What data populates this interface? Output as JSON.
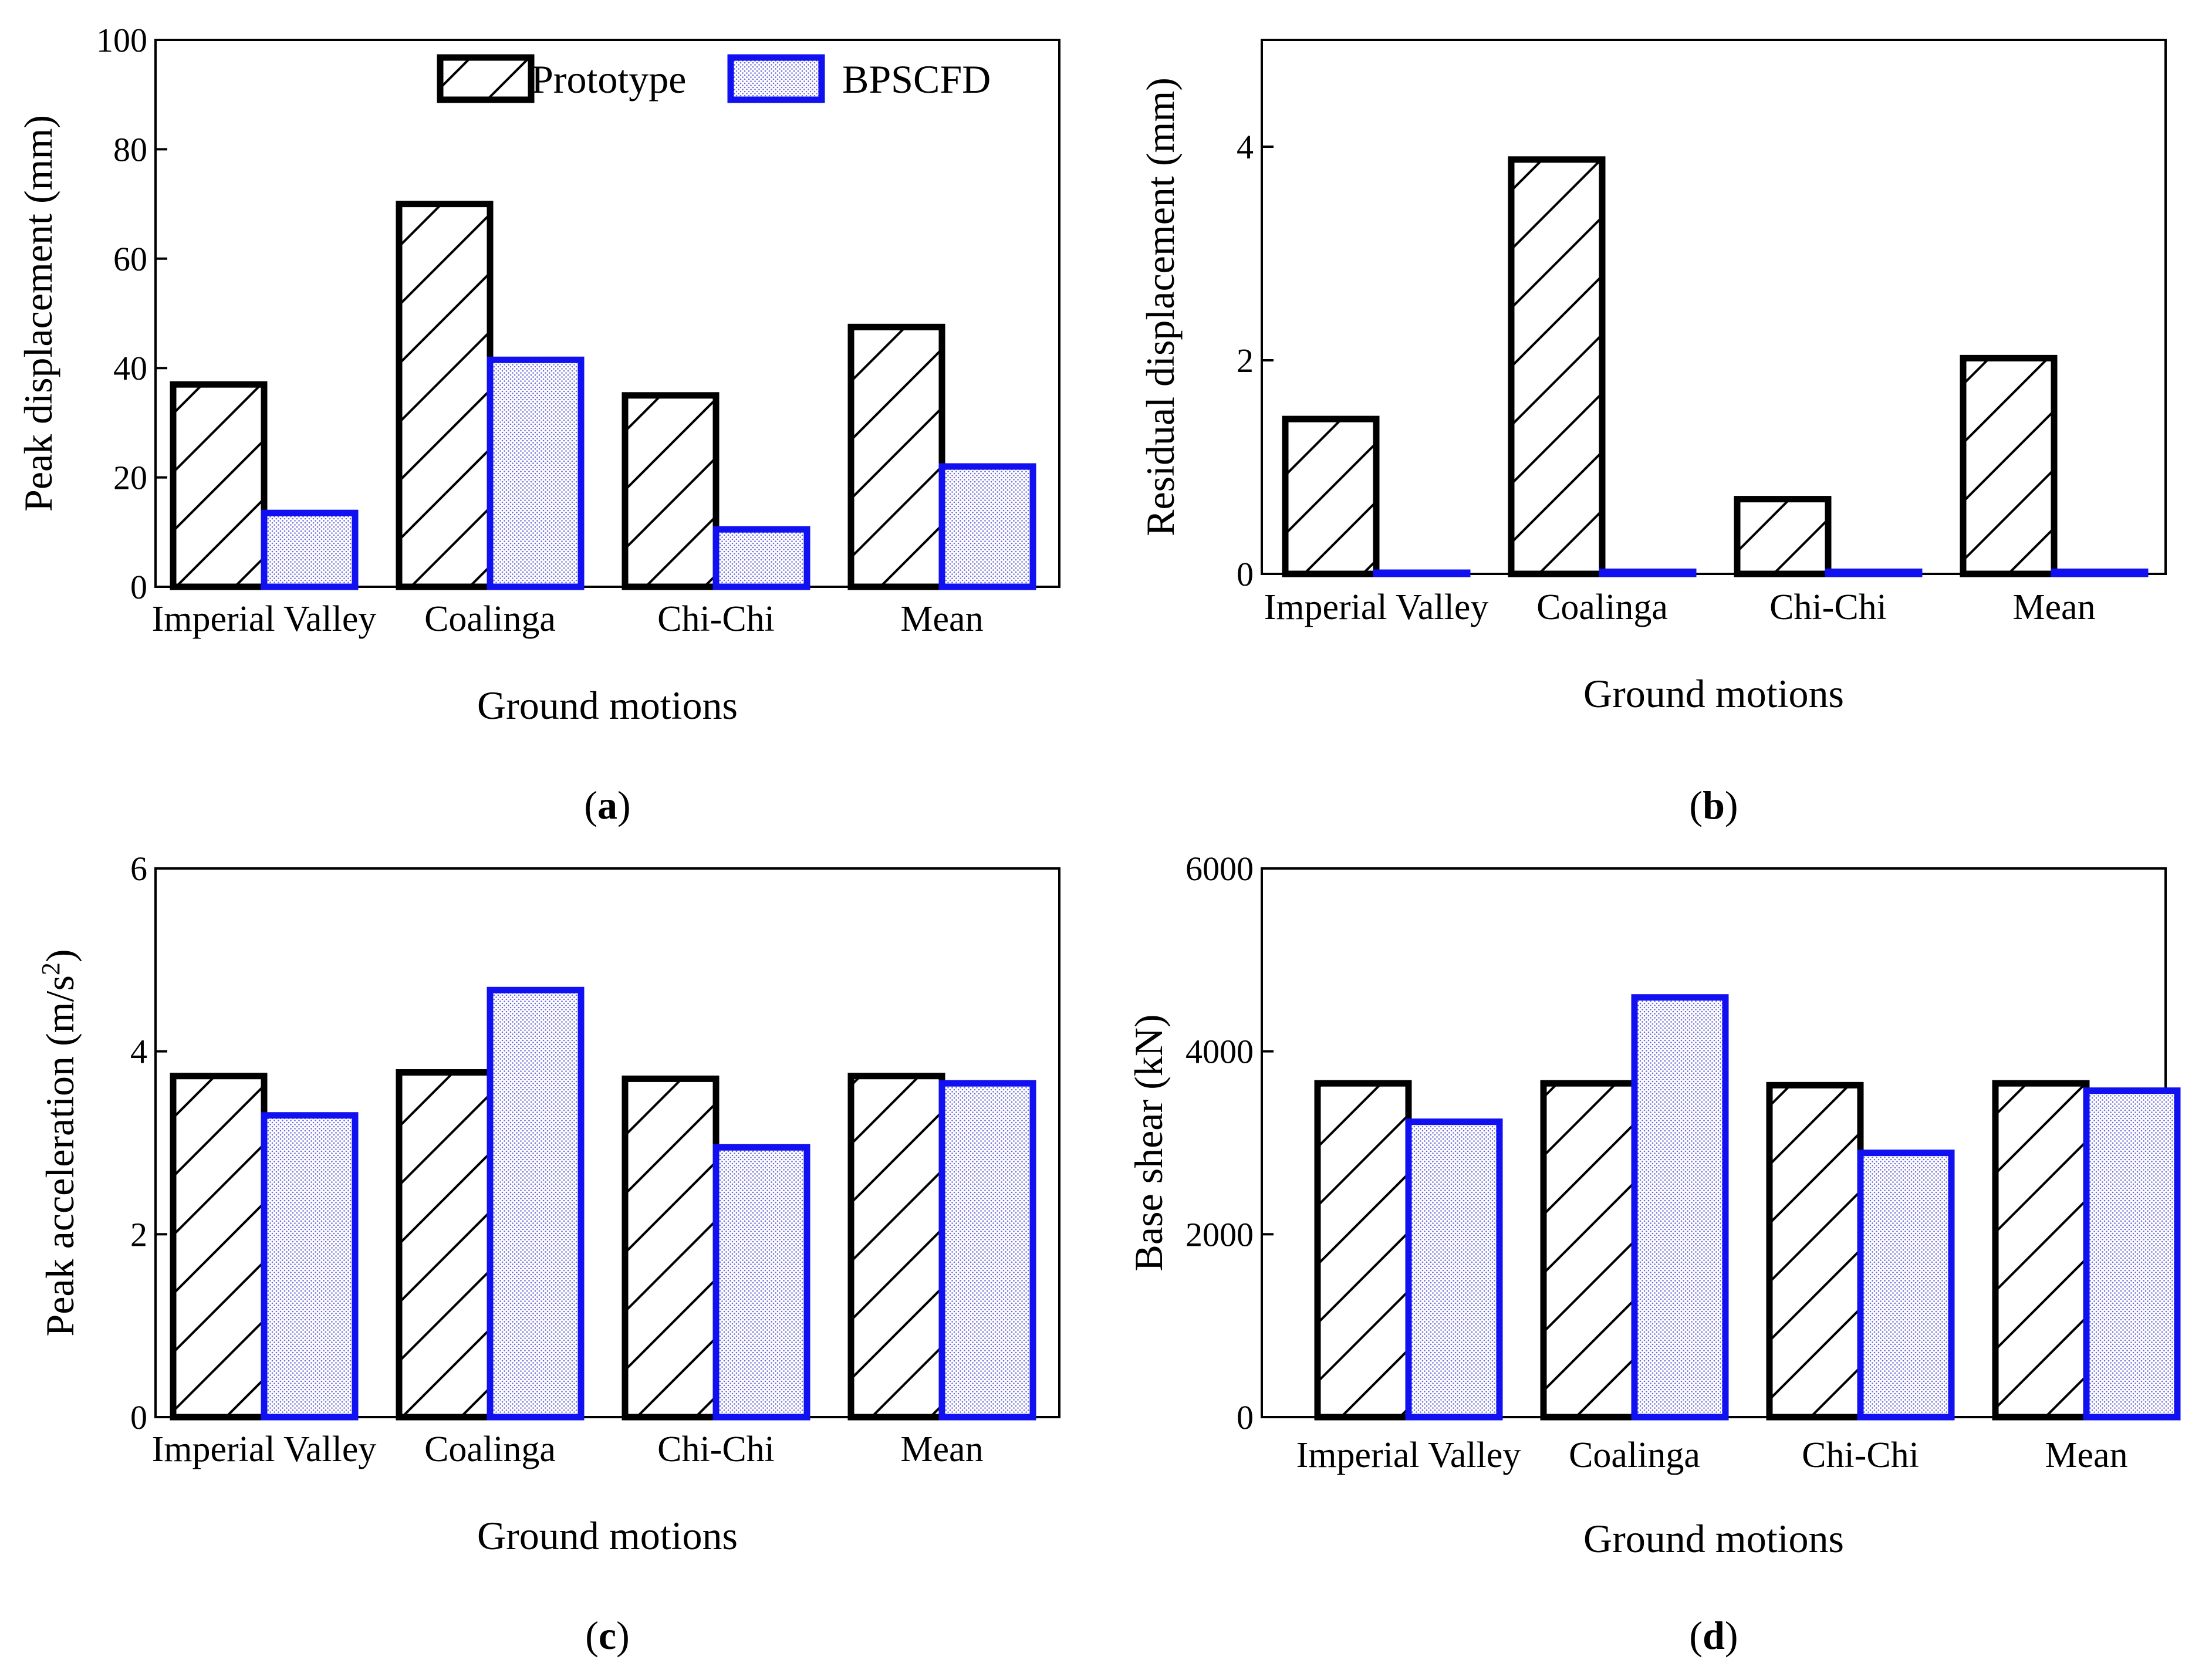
{
  "colors": {
    "prototype_edge": "#000000",
    "bpscfd_edge": "#1010f0",
    "bpscfd_dot": "#6a6ad8",
    "background": "#ffffff"
  },
  "legend": {
    "items": [
      {
        "label": "Prototype",
        "pattern": "hatch"
      },
      {
        "label": "BPSCFD",
        "pattern": "dots"
      }
    ]
  },
  "chart_data": [
    {
      "id": "a",
      "type": "bar",
      "panel_label": "a",
      "categories": [
        "Imperial Valley",
        "Coalinga",
        "Chi-Chi",
        "Mean"
      ],
      "series": [
        {
          "name": "Prototype",
          "values": [
            37,
            70,
            35,
            47.5
          ]
        },
        {
          "name": "BPSCFD",
          "values": [
            13.5,
            41.5,
            10.5,
            22
          ]
        }
      ],
      "xlabel": "Ground motions",
      "ylabel": "Peak displacement (mm)",
      "ylim": [
        0,
        100
      ],
      "yticks": [
        0,
        20,
        40,
        60,
        80,
        100
      ],
      "legend": "top-right"
    },
    {
      "id": "b",
      "type": "bar",
      "panel_label": "b",
      "categories": [
        "Imperial Valley",
        "Coalinga",
        "Chi-Chi",
        "Mean"
      ],
      "series": [
        {
          "name": "Prototype",
          "values": [
            1.45,
            3.88,
            0.7,
            2.02
          ]
        },
        {
          "name": "BPSCFD",
          "values": [
            0.01,
            0.02,
            0.02,
            0.02
          ]
        }
      ],
      "xlabel": "Ground motions",
      "ylabel": "Residual displacement (mm)",
      "ylim": [
        0,
        5
      ],
      "yticks": [
        0,
        2,
        4
      ]
    },
    {
      "id": "c",
      "type": "bar",
      "panel_label": "c",
      "categories": [
        "Imperial Valley",
        "Coalinga",
        "Chi-Chi",
        "Mean"
      ],
      "series": [
        {
          "name": "Prototype",
          "values": [
            3.73,
            3.77,
            3.7,
            3.73
          ]
        },
        {
          "name": "BPSCFD",
          "values": [
            3.3,
            4.67,
            2.95,
            3.65
          ]
        }
      ],
      "xlabel": "Ground motions",
      "ylabel": "Peak acceleration (m/s²)",
      "ylabel_parts": {
        "main": "Peak acceleration (m/s",
        "sup": "2",
        "close": ")"
      },
      "ylim": [
        0,
        6
      ],
      "yticks": [
        0,
        2,
        4,
        6
      ]
    },
    {
      "id": "d",
      "type": "bar",
      "panel_label": "d",
      "categories": [
        "Imperial Valley",
        "Coalinga",
        "Chi-Chi",
        "Mean"
      ],
      "series": [
        {
          "name": "Prototype",
          "values": [
            3650,
            3650,
            3630,
            3650
          ]
        },
        {
          "name": "BPSCFD",
          "values": [
            3230,
            4590,
            2890,
            3570
          ]
        }
      ],
      "xlabel": "Ground motions",
      "ylabel": "Base shear (kN)",
      "ylim": [
        0,
        6000
      ],
      "yticks": [
        0,
        2000,
        4000,
        6000
      ]
    }
  ]
}
